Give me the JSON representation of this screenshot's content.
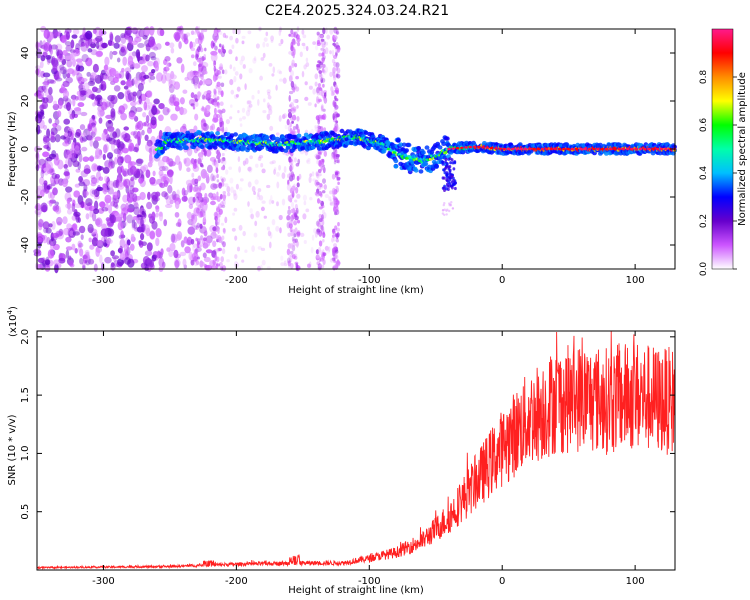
{
  "title": "C2E4.2025.324.03.24.R21",
  "chart_data": [
    {
      "type": "heatmap",
      "xlabel": "Height of straight line (km)",
      "ylabel": "Frequency (Hz)",
      "xlim": [
        -350,
        130
      ],
      "ylim": [
        -50,
        50
      ],
      "x_ticks": [
        -300,
        -200,
        -100,
        0,
        100
      ],
      "y_ticks": [
        -40,
        -20,
        0,
        20,
        40
      ],
      "colorbar": {
        "label": "Normalized spectral amplitude",
        "range": [
          0,
          1
        ],
        "ticks": [
          "0.0",
          "0.2",
          "0.4",
          "0.6",
          "0.8"
        ],
        "colormap": [
          "#ffffff",
          "#cc55ff",
          "#6600cc",
          "#0000ff",
          "#00bfff",
          "#00ffaa",
          "#00ff00",
          "#ffff00",
          "#ff8c00",
          "#ff0000",
          "#ff1a8c"
        ]
      },
      "signal_track": [
        {
          "x": -255,
          "f": 3
        },
        {
          "x": -230,
          "f": 4
        },
        {
          "x": -200,
          "f": 3
        },
        {
          "x": -170,
          "f": 2
        },
        {
          "x": -140,
          "f": 3
        },
        {
          "x": -110,
          "f": 5
        },
        {
          "x": -90,
          "f": 2
        },
        {
          "x": -75,
          "f": -3
        },
        {
          "x": -60,
          "f": -5
        },
        {
          "x": -50,
          "f": -3
        },
        {
          "x": -40,
          "f": 0
        },
        {
          "x": -20,
          "f": 1
        },
        {
          "x": 0,
          "f": 0
        },
        {
          "x": 50,
          "f": 0
        },
        {
          "x": 100,
          "f": 0
        },
        {
          "x": 130,
          "f": 0
        }
      ]
    },
    {
      "type": "line",
      "xlabel": "Height of straight line (km)",
      "ylabel": "SNR (10 * v/v)",
      "y_multiplier": "(x10",
      "y_multiplier_exp": "4",
      "xlim": [
        -350,
        130
      ],
      "ylim": [
        0,
        2.05
      ],
      "x_ticks": [
        -300,
        -200,
        -100,
        0,
        100
      ],
      "y_ticks": [
        "0.5",
        "1.0",
        "1.5",
        "2.0"
      ],
      "series_color": "#ff0000",
      "envelope": [
        {
          "x": -350,
          "y": 0.02
        },
        {
          "x": -250,
          "y": 0.03
        },
        {
          "x": -200,
          "y": 0.05
        },
        {
          "x": -150,
          "y": 0.06
        },
        {
          "x": -120,
          "y": 0.06
        },
        {
          "x": -100,
          "y": 0.1
        },
        {
          "x": -80,
          "y": 0.15
        },
        {
          "x": -60,
          "y": 0.25
        },
        {
          "x": -40,
          "y": 0.45
        },
        {
          "x": -20,
          "y": 0.75
        },
        {
          "x": 0,
          "y": 1.05
        },
        {
          "x": 20,
          "y": 1.3
        },
        {
          "x": 40,
          "y": 1.45
        },
        {
          "x": 60,
          "y": 1.48
        },
        {
          "x": 80,
          "y": 1.45
        },
        {
          "x": 100,
          "y": 1.5
        },
        {
          "x": 120,
          "y": 1.45
        },
        {
          "x": 130,
          "y": 1.45
        }
      ]
    }
  ]
}
